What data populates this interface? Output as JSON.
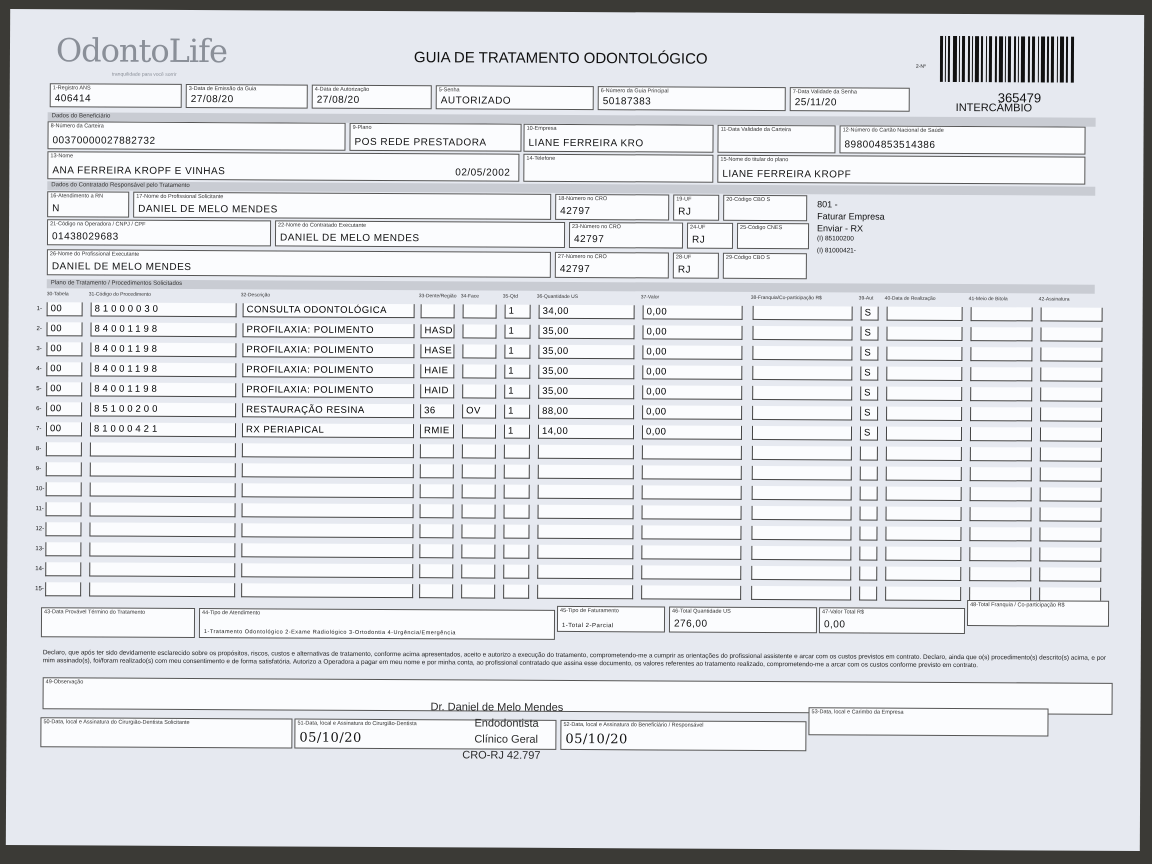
{
  "header": {
    "logo": "OdontoLife",
    "logo_tagline": "tranquilidade para você sorrir",
    "title": "GUIA DE TRATAMENTO ODONTOLÓGICO",
    "number": "365479",
    "note": "INTERCÂMBIO",
    "code": "2-Nº"
  },
  "sections": [
    "Dados do Beneficiário",
    "Dados do Contratado Responsável pelo Tratamento",
    "Plano de Tratamento / Procedimentos Solicitados"
  ],
  "fields": [
    {
      "label": "1-Registro ANS",
      "value": "406414"
    },
    {
      "label": "3-Data de Emissão da Guia",
      "value": "27/08/20"
    },
    {
      "label": "4-Data de Autorização",
      "value": "27/08/20"
    },
    {
      "label": "5-Senha",
      "value": "AUTORIZADO"
    },
    {
      "label": "6-Número da Guia Principal",
      "value": "50187383"
    },
    {
      "label": "7-Data Validade da Senha",
      "value": "25/11/20"
    },
    {
      "label": "8-Número da Carteira",
      "value": "00370000027882732"
    },
    {
      "label": "9-Plano",
      "value": "POS REDE PRESTADORA"
    },
    {
      "label": "10-Empresa",
      "value": "LIANE FERREIRA KRO"
    },
    {
      "label": "11-Data Validade da Carteira"
    },
    {
      "label": "12-Número do Cartão Nacional de Saúde",
      "value": "898004853514386"
    },
    {
      "label": "13-Nome",
      "value": "ANA FERREIRA KROPF E VINHAS",
      "date": "02/05/2002"
    },
    {
      "label": "14-Telefone"
    },
    {
      "label": "15-Nome do titular do plano",
      "value": "LIANE FERREIRA KROPF"
    },
    {
      "label": "16-Atendimento a RN",
      "value": "N"
    },
    {
      "label": "17-Nome do Profissional Solicitante",
      "value": "DANIEL DE MELO MENDES"
    },
    {
      "label": "18-Número no CRO",
      "value": "42797"
    },
    {
      "label": "19-UF",
      "value": "RJ"
    },
    {
      "label": "20-Código CBO S"
    },
    {
      "label": "21-Código na Operadora / CNPJ / CPF",
      "value": "01438029683"
    },
    {
      "label": "22-Nome do Contratado Executante",
      "value": "DANIEL DE MELO MENDES"
    },
    {
      "label": "23-Número no CRO",
      "value": "42797"
    },
    {
      "label": "24-UF",
      "value": "RJ"
    },
    {
      "label": "25-Código CNES"
    },
    {
      "label": "26-Nome do Profissional Executante",
      "value": "DANIEL DE MELO MENDES"
    },
    {
      "label": "27-Número no CRO",
      "value": "42797"
    },
    {
      "label": "28-UF",
      "value": "RJ"
    },
    {
      "label": "29-Código CBO S"
    }
  ],
  "side_note": [
    "801 -",
    "Faturar Empresa",
    "Enviar - RX",
    "(I) 85100200",
    "(I) 81000421-"
  ],
  "table": {
    "columns": [
      "30-Tabela",
      "31-Código do Procedimento",
      "32-Descrição",
      "33-Dente/Região",
      "34-Face",
      "35-Qtd",
      "36-Quantidade US",
      "37-Valor",
      "38-Franquia/Co-participação R$",
      "39-Aut",
      "40-Data de Realização",
      "41-Meio de Bitola",
      "42-Assinatura"
    ],
    "rows": [
      {
        "n": "1-",
        "tabela": "00",
        "codigo": "81000030",
        "descricao": "CONSULTA ODONTOLÓGICA",
        "qtd": "1",
        "us": "34,00",
        "valor": "0,00",
        "aut": "S"
      },
      {
        "n": "2-",
        "tabela": "00",
        "codigo": "84001198",
        "descricao": "PROFILAXIA: POLIMENTO",
        "dente": "HASD",
        "qtd": "1",
        "us": "35,00",
        "valor": "0,00",
        "aut": "S"
      },
      {
        "n": "3-",
        "tabela": "00",
        "codigo": "84001198",
        "descricao": "PROFILAXIA: POLIMENTO",
        "dente": "HASE",
        "qtd": "1",
        "us": "35,00",
        "valor": "0,00",
        "aut": "S"
      },
      {
        "n": "4-",
        "tabela": "00",
        "codigo": "84001198",
        "descricao": "PROFILAXIA: POLIMENTO",
        "dente": "HAIE",
        "qtd": "1",
        "us": "35,00",
        "valor": "0,00",
        "aut": "S"
      },
      {
        "n": "5-",
        "tabela": "00",
        "codigo": "84001198",
        "descricao": "PROFILAXIA: POLIMENTO",
        "dente": "HAID",
        "qtd": "1",
        "us": "35,00",
        "valor": "0,00",
        "aut": "S"
      },
      {
        "n": "6-",
        "tabela": "00",
        "codigo": "85100200",
        "descricao": "RESTAURAÇÃO RESINA",
        "dente": "36",
        "face": "OV",
        "qtd": "1",
        "us": "88,00",
        "valor": "0,00",
        "aut": "S"
      },
      {
        "n": "7-",
        "tabela": "00",
        "codigo": "81000421",
        "descricao": "RX PERIAPICAL",
        "dente": "RMIE",
        "qtd": "1",
        "us": "14,00",
        "valor": "0,00",
        "aut": "S"
      },
      {
        "n": "8-"
      },
      {
        "n": "9-"
      },
      {
        "n": "10-"
      },
      {
        "n": "11-"
      },
      {
        "n": "12-"
      },
      {
        "n": "13-"
      },
      {
        "n": "14-"
      },
      {
        "n": "15-"
      }
    ]
  },
  "footer_fields": [
    {
      "label": "43-Data Provável Término do Tratamento"
    },
    {
      "label": "44-Tipo de Atendimento",
      "value": "1-Tratamento Odontológico 2-Exame Radiológico 3-Ortodontia 4-Urgência/Emergência"
    },
    {
      "label": "45-Tipo de Faturamento",
      "value": "1-Total 2-Parcial"
    },
    {
      "label": "46-Total Quantidade US",
      "value": "276,00"
    },
    {
      "label": "47-Valor Total R$",
      "value": "0,00"
    },
    {
      "label": "48-Total Franquia / Co-participação R$"
    }
  ],
  "declaration": "Declaro, que após ter sido devidamente esclarecido sobre os propósitos, riscos, custos e alternativas de tratamento, conforme acima apresentados, aceito e autorizo a execução do tratamento, comprometendo-me a cumprir as orientações do profissional assistente e arcar com os custos previstos em contrato. Declaro, ainda que o(s) procedimento(s) descrito(s) acima, e por mim assinado(s), foi/foram realizado(s) com meu consentimento e de forma satisfatória. Autorizo a Operadora a pagar em meu nome e por minha conta, ao profissional contratado que assina esse documento, os valores referentes ao tratamento realizado, comprometendo-me a arcar com os custos conforme previsto em contrato.",
  "observation_label": "49-Observação",
  "signatures": [
    {
      "label": "50-Data, local e Assinatura do Cirurgião-Dentista Solicitante"
    },
    {
      "label": "51-Data, local e Assinatura do Cirurgião-Dentista",
      "value": "05/10/20"
    },
    {
      "label": "52-Data, local e Assinatura do Beneficiário / Responsável",
      "value": "05/10/20"
    },
    {
      "label": "53-Data, local e Carimbo da Empresa"
    }
  ],
  "stamp": [
    "Dr. Daniel de Melo Mendes",
    "Endodontista",
    "Clínico Geral",
    "CRO-RJ 42.797"
  ]
}
